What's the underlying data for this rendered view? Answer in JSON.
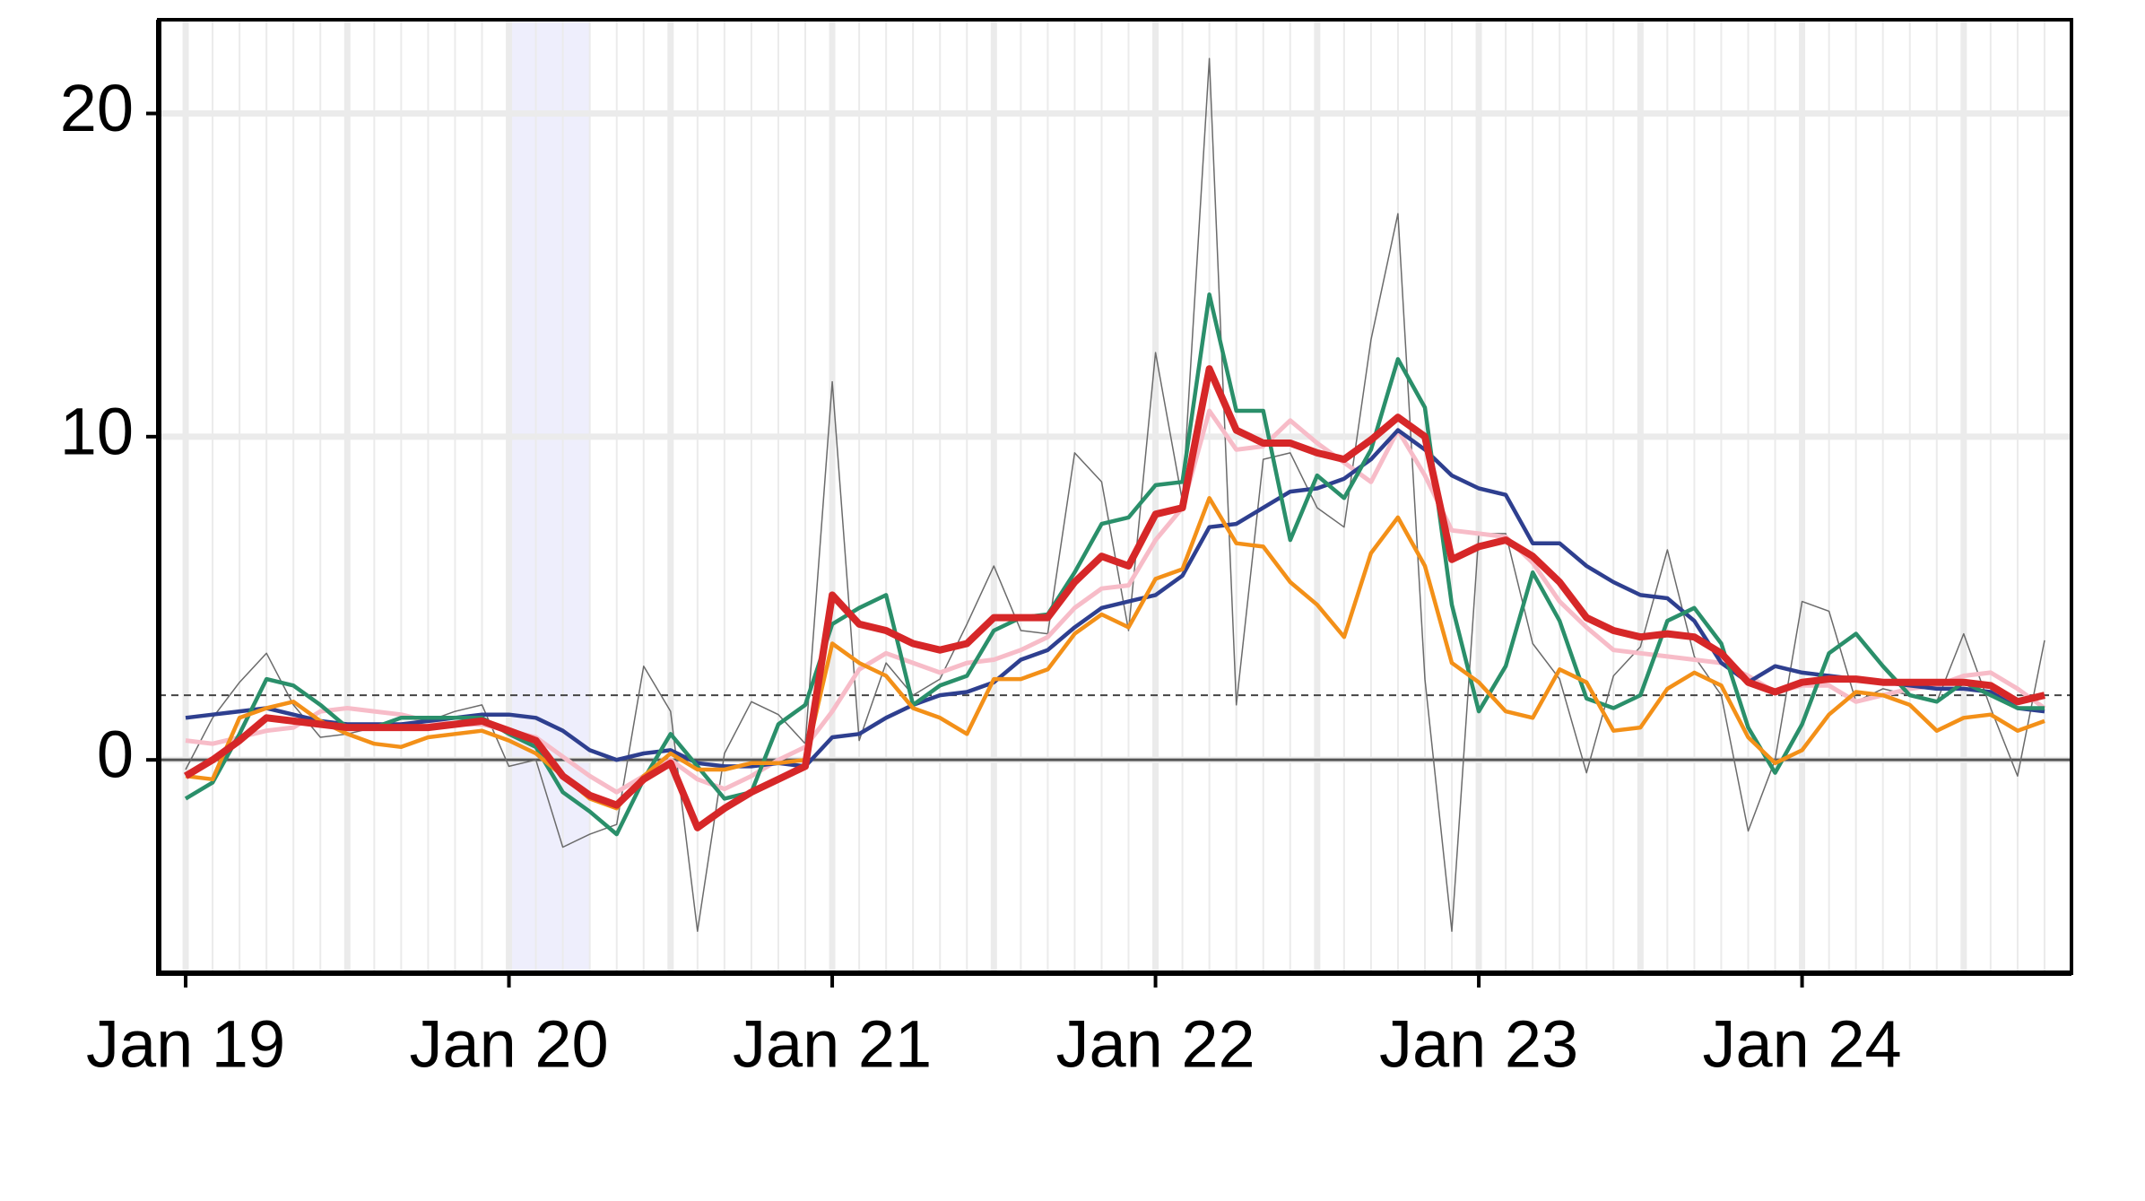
{
  "chart_data": {
    "type": "line",
    "x": [
      "2019-01",
      "2019-02",
      "2019-03",
      "2019-04",
      "2019-05",
      "2019-06",
      "2019-07",
      "2019-08",
      "2019-09",
      "2019-10",
      "2019-11",
      "2019-12",
      "2020-01",
      "2020-02",
      "2020-03",
      "2020-04",
      "2020-05",
      "2020-06",
      "2020-07",
      "2020-08",
      "2020-09",
      "2020-10",
      "2020-11",
      "2020-12",
      "2021-01",
      "2021-02",
      "2021-03",
      "2021-04",
      "2021-05",
      "2021-06",
      "2021-07",
      "2021-08",
      "2021-09",
      "2021-10",
      "2021-11",
      "2021-12",
      "2022-01",
      "2022-02",
      "2022-03",
      "2022-04",
      "2022-05",
      "2022-06",
      "2022-07",
      "2022-08",
      "2022-09",
      "2022-10",
      "2022-11",
      "2022-12",
      "2023-01",
      "2023-02",
      "2023-03",
      "2023-04",
      "2023-05",
      "2023-06",
      "2023-07",
      "2023-08",
      "2023-09",
      "2023-10",
      "2023-11",
      "2023-12",
      "2024-01",
      "2024-02",
      "2024-03",
      "2024-04",
      "2024-05",
      "2024-06",
      "2024-07",
      "2024-08",
      "2024-09",
      "2024-10"
    ],
    "series": [
      {
        "color": "#6b6b6b",
        "width": 1.5,
        "values": [
          -0.3,
          1.3,
          2.4,
          3.3,
          1.7,
          0.7,
          0.8,
          1.0,
          1.1,
          1.2,
          1.5,
          1.7,
          -0.2,
          0,
          -2.7,
          -2.3,
          -2.0,
          2.9,
          1.5,
          -5.3,
          0.2,
          1.8,
          1.4,
          0.5,
          11.7,
          0.6,
          3.0,
          2.0,
          2.5,
          4.2,
          6.0,
          4.0,
          3.9,
          9.5,
          8.6,
          4.0,
          12.6,
          8.0,
          21.7,
          1.7,
          9.3,
          9.5,
          7.8,
          7.2,
          13.0,
          16.9,
          2.5,
          -5.3,
          7.0,
          7.0,
          3.6,
          2.5,
          -0.4,
          2.6,
          3.5,
          6.5,
          3.2,
          2.0,
          -2.2,
          0,
          4.9,
          4.6,
          1.8,
          2.2,
          2.0,
          1.8,
          3.9,
          1.6,
          -0.5,
          3.7
        ]
      },
      {
        "color": "#f7bcc8",
        "width": 5,
        "values": [
          0.6,
          0.5,
          0.7,
          0.9,
          1.0,
          1.5,
          1.6,
          1.5,
          1.4,
          1.2,
          1.1,
          1.1,
          0.9,
          0.7,
          0.1,
          -0.5,
          -1.0,
          -0.5,
          0.0,
          -0.6,
          -0.9,
          -0.5,
          0.0,
          0.4,
          1.5,
          2.8,
          3.3,
          3.0,
          2.7,
          3.0,
          3.1,
          3.4,
          3.8,
          4.7,
          5.3,
          5.4,
          6.8,
          7.8,
          10.8,
          9.6,
          9.7,
          10.5,
          9.8,
          9.2,
          8.6,
          10.2,
          8.8,
          7.1,
          7.0,
          6.9,
          6.1,
          4.9,
          4.1,
          3.4,
          3.3,
          3.2,
          3.1,
          3.0,
          2.6,
          2.1,
          2.3,
          2.3,
          1.8,
          2.0,
          2.2,
          2.3,
          2.6,
          2.7,
          2.2,
          1.6
        ]
      },
      {
        "color": "#2e3f8f",
        "width": 4.5,
        "values": [
          1.3,
          1.4,
          1.5,
          1.6,
          1.4,
          1.2,
          1.1,
          1.1,
          1.1,
          1.2,
          1.3,
          1.4,
          1.4,
          1.3,
          0.9,
          0.3,
          0.0,
          0.2,
          0.3,
          -0.1,
          -0.2,
          -0.2,
          -0.1,
          -0.2,
          0.7,
          0.8,
          1.3,
          1.7,
          2.0,
          2.1,
          2.4,
          3.1,
          3.4,
          4.1,
          4.7,
          4.9,
          5.1,
          5.7,
          7.2,
          7.3,
          7.8,
          8.3,
          8.4,
          8.7,
          9.3,
          10.2,
          9.6,
          8.8,
          8.4,
          8.2,
          6.7,
          6.7,
          6.0,
          5.5,
          5.1,
          5.0,
          4.3,
          3.0,
          2.4,
          2.9,
          2.7,
          2.6,
          2.5,
          2.4,
          2.3,
          2.2,
          2.2,
          2.1,
          1.6,
          1.5
        ]
      },
      {
        "color": "#2a8f6a",
        "width": 4.5,
        "values": [
          -1.2,
          -0.7,
          0.8,
          2.5,
          2.3,
          1.7,
          1.0,
          1.0,
          1.3,
          1.3,
          1.3,
          1.3,
          0.8,
          0.4,
          -1.0,
          -1.6,
          -2.3,
          -0.6,
          0.8,
          -0.2,
          -1.2,
          -1.0,
          1.1,
          1.7,
          4.2,
          4.7,
          5.1,
          1.7,
          2.3,
          2.6,
          4.0,
          4.4,
          4.5,
          5.8,
          7.3,
          7.5,
          8.5,
          8.6,
          14.4,
          10.8,
          10.8,
          6.8,
          8.8,
          8.1,
          9.6,
          12.4,
          10.9,
          4.8,
          1.5,
          2.9,
          5.8,
          4.3,
          1.9,
          1.6,
          2.0,
          4.3,
          4.7,
          3.6,
          1.0,
          -0.4,
          1.1,
          3.3,
          3.9,
          2.9,
          2.0,
          1.8,
          2.4,
          2.0,
          1.6,
          1.6
        ]
      },
      {
        "color": "#f39018",
        "width": 4.5,
        "values": [
          -0.5,
          -0.6,
          1.3,
          1.6,
          1.8,
          1.2,
          0.8,
          0.5,
          0.4,
          0.7,
          0.8,
          0.9,
          0.6,
          0.2,
          -0.5,
          -1.2,
          -1.5,
          -0.5,
          0.2,
          -0.3,
          -0.3,
          -0.1,
          -0.1,
          0.0,
          3.6,
          3.0,
          2.6,
          1.6,
          1.3,
          0.8,
          2.5,
          2.5,
          2.8,
          3.9,
          4.5,
          4.1,
          5.6,
          5.9,
          8.1,
          6.7,
          6.6,
          5.5,
          4.8,
          3.8,
          6.4,
          7.5,
          6.0,
          3.0,
          2.4,
          1.5,
          1.3,
          2.8,
          2.4,
          0.9,
          1.0,
          2.2,
          2.7,
          2.3,
          0.7,
          -0.1,
          0.3,
          1.4,
          2.1,
          2.0,
          1.7,
          0.9,
          1.3,
          1.4,
          0.9,
          1.2
        ]
      },
      {
        "color": "#d62728",
        "width": 8,
        "values": [
          -0.5,
          0,
          0.6,
          1.3,
          1.2,
          1.1,
          1.0,
          1.0,
          1.0,
          1.0,
          1.1,
          1.2,
          0.9,
          0.6,
          -0.5,
          -1.1,
          -1.4,
          -0.6,
          -0.1,
          -2.1,
          -1.5,
          -1.0,
          -0.6,
          -0.2,
          5.1,
          4.2,
          4.0,
          3.6,
          3.4,
          3.6,
          4.4,
          4.4,
          4.4,
          5.5,
          6.3,
          6.0,
          7.6,
          7.8,
          12.1,
          10.2,
          9.8,
          9.8,
          9.5,
          9.3,
          9.9,
          10.6,
          10.0,
          6.2,
          6.6,
          6.8,
          6.3,
          5.5,
          4.4,
          4.0,
          3.8,
          3.9,
          3.8,
          3.3,
          2.4,
          2.1,
          2.4,
          2.5,
          2.5,
          2.4,
          2.4,
          2.4,
          2.4,
          2.3,
          1.8,
          2.0
        ]
      }
    ],
    "xlim": [
      "2018-12",
      "2024-11"
    ],
    "xticks": [
      {
        "value": "2019-01",
        "label": "Jan 19"
      },
      {
        "value": "2020-01",
        "label": "Jan 20"
      },
      {
        "value": "2021-01",
        "label": "Jan 21"
      },
      {
        "value": "2022-01",
        "label": "Jan 22"
      },
      {
        "value": "2023-01",
        "label": "Jan 23"
      },
      {
        "value": "2024-01",
        "label": "Jan 24"
      }
    ],
    "ylim": [
      -6.6,
      22.9
    ],
    "yticks": [
      0,
      10,
      20
    ],
    "grid": true,
    "shade": {
      "from": "2020-01",
      "to": "2020-04",
      "color": "#eeeefc"
    },
    "hlines": [
      {
        "value": 0,
        "style": "solid"
      },
      {
        "value": 2,
        "style": "dashed"
      }
    ]
  }
}
